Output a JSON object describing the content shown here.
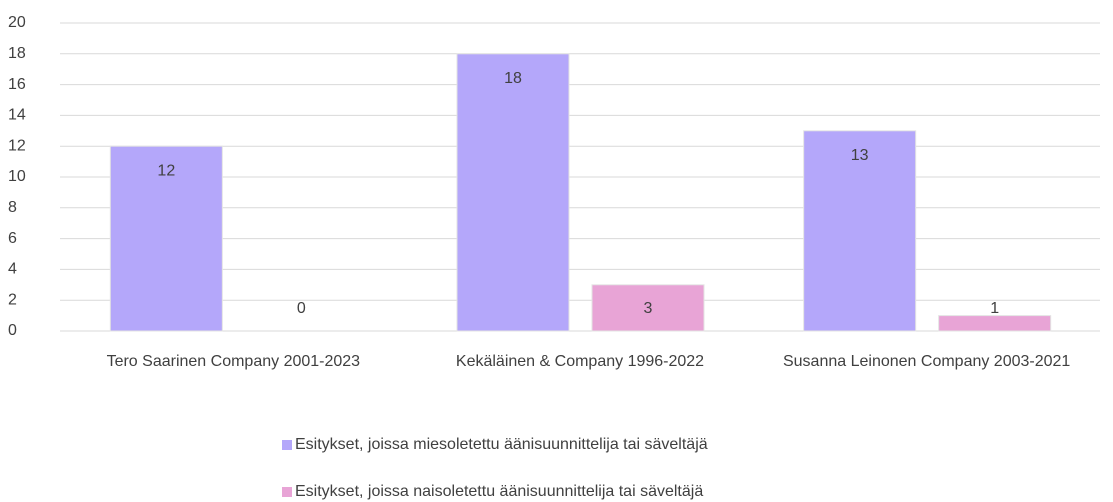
{
  "chart_data": {
    "type": "bar",
    "categories": [
      "Tero Saarinen Company 2001-2023",
      "Kekäläinen & Company 1996-2022",
      "Susanna Leinonen Company 2003-2021"
    ],
    "series": [
      {
        "name": "Esitykset, joissa miesoletettu äänisuunnittelija tai säveltäjä",
        "color": "#b4a7fa",
        "values": [
          12,
          18,
          13
        ]
      },
      {
        "name": "Esitykset, joissa naisoletettu äänisuunnittelija tai säveltäjä",
        "color": "#e8a4d6",
        "values": [
          0,
          3,
          1
        ]
      }
    ],
    "ylim": [
      0,
      20
    ],
    "yticks": [
      0,
      2,
      4,
      6,
      8,
      10,
      12,
      14,
      16,
      18,
      20
    ],
    "grid": true,
    "legend": "bottom"
  }
}
